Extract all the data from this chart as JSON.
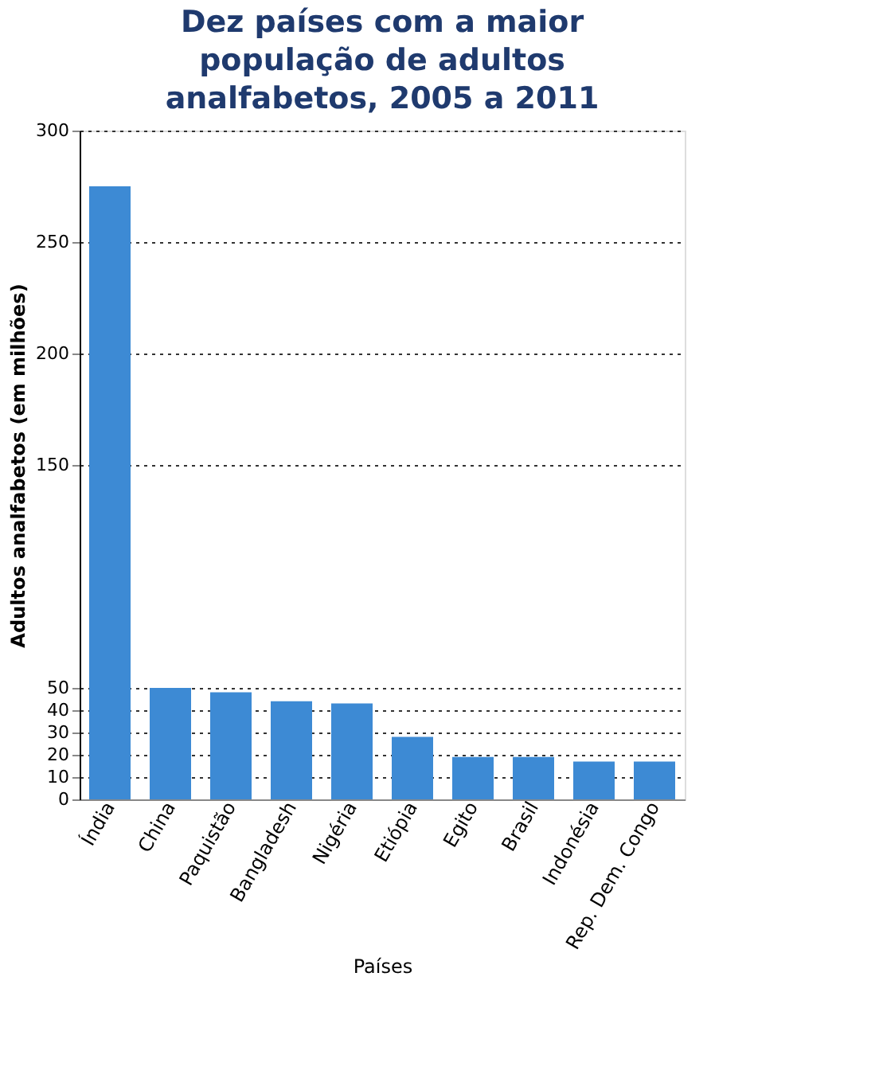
{
  "chart_data": {
    "type": "bar",
    "title": "Dez países com a maior população de adultos analfabetos, 2005 a 2011",
    "categories": [
      "Índia",
      "China",
      "Paquistão",
      "Bangladesh",
      "Nigéria",
      "Etiópia",
      "Egito",
      "Brasil",
      "Indonésia",
      "Rep. Dem. Congo"
    ],
    "values": [
      275,
      50,
      48,
      44,
      43,
      28,
      19,
      19,
      17,
      17
    ],
    "color": "#3d8ad4",
    "xlabel": "Países",
    "ylabel": "Adultos analfabetos (em milhões)",
    "ylim": [
      0,
      300
    ],
    "yticks": [
      0,
      10,
      20,
      30,
      40,
      50,
      150,
      200,
      250,
      300
    ],
    "grid": "y"
  }
}
